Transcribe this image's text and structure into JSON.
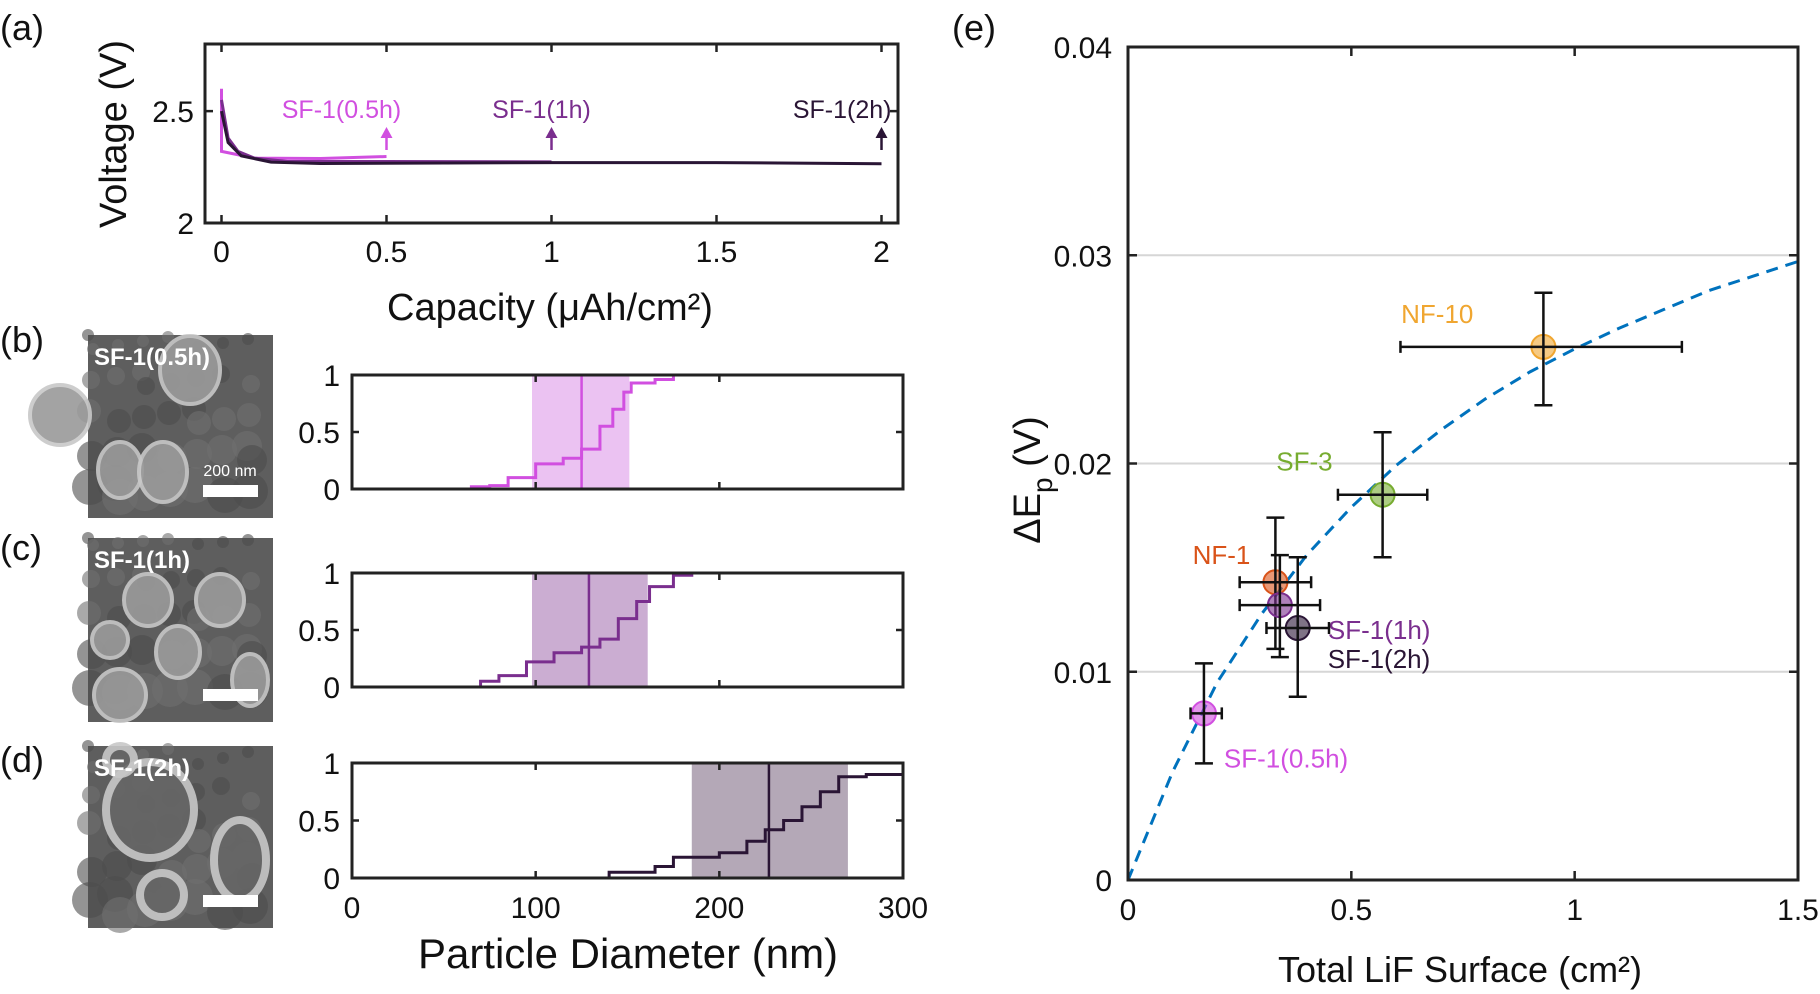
{
  "panel_labels": {
    "a": "(a)",
    "b": "(b)",
    "c": "(c)",
    "d": "(d)",
    "e": "(e)"
  },
  "colors": {
    "sf1_05h": "#d14fe0",
    "sf1_1h": "#7a2e8e",
    "sf1_2h": "#2a1535",
    "nf1": "#d95319",
    "sf3": "#77ac30",
    "nf10": "#f0a630",
    "fit": "#0072bd"
  },
  "sem_images": [
    {
      "label": "SF-1(0.5h)",
      "scale_label": "200 nm"
    },
    {
      "label": "SF-1(1h)",
      "scale_label": ""
    },
    {
      "label": "SF-1(2h)",
      "scale_label": ""
    }
  ],
  "chart_data": [
    {
      "panel": "a",
      "type": "line",
      "xlabel": "Capacity (μAh/cm²)",
      "ylabel": "Voltage (V)",
      "xlim": [
        -0.05,
        2.05
      ],
      "ylim": [
        2,
        2.8
      ],
      "xticks": [
        "0",
        "0.5",
        "1",
        "1.5",
        "2"
      ],
      "xtick_values": [
        0,
        0.5,
        1,
        1.5,
        2
      ],
      "yticks": [
        "2",
        "2.5"
      ],
      "ytick_values": [
        2,
        2.5
      ],
      "grid": false,
      "series": [
        {
          "key": "sf1_05h",
          "points": [
            [
              0,
              2.6
            ],
            [
              0,
              2.32
            ],
            [
              0.1,
              2.29
            ],
            [
              0.3,
              2.288
            ],
            [
              0.5,
              2.297
            ]
          ]
        },
        {
          "key": "sf1_1h",
          "points": [
            [
              0,
              2.55
            ],
            [
              0.02,
              2.38
            ],
            [
              0.05,
              2.32
            ],
            [
              0.1,
              2.29
            ],
            [
              0.2,
              2.275
            ],
            [
              0.5,
              2.275
            ],
            [
              1,
              2.273
            ]
          ]
        },
        {
          "key": "sf1_2h",
          "points": [
            [
              0,
              2.5
            ],
            [
              0.02,
              2.36
            ],
            [
              0.06,
              2.3
            ],
            [
              0.15,
              2.272
            ],
            [
              0.3,
              2.266
            ],
            [
              1,
              2.27
            ],
            [
              1.5,
              2.27
            ],
            [
              2,
              2.265
            ]
          ]
        }
      ],
      "annotations": [
        {
          "text": "SF-1(0.5h)",
          "x": 0.5,
          "key": "sf1_05h"
        },
        {
          "text": "SF-1(1h)",
          "x": 1,
          "key": "sf1_1h"
        },
        {
          "text": "SF-1(2h)",
          "x": 2,
          "key": "sf1_2h"
        }
      ]
    },
    {
      "panel": "b-d",
      "type": "line",
      "xlabel": "Particle Diameter (nm)",
      "xlim": [
        0,
        300
      ],
      "ylim": [
        0,
        1
      ],
      "xticks": [
        "0",
        "100",
        "200",
        "300"
      ],
      "xtick_values": [
        0,
        100,
        200,
        300
      ],
      "yticks": [
        "0",
        "0.5",
        "1"
      ],
      "ytick_values": [
        0,
        0.5,
        1
      ],
      "series": [
        {
          "key": "sf1_05h",
          "shade_color": "#ebc2f2",
          "band": [
            98,
            151
          ],
          "median": 125,
          "cdf": [
            [
              55,
              0
            ],
            [
              65,
              0.02
            ],
            [
              75,
              0.03
            ],
            [
              85,
              0.1
            ],
            [
              100,
              0.22
            ],
            [
              115,
              0.27
            ],
            [
              125,
              0.35
            ],
            [
              135,
              0.55
            ],
            [
              142,
              0.7
            ],
            [
              148,
              0.85
            ],
            [
              152,
              0.93
            ],
            [
              165,
              0.96
            ],
            [
              175,
              1
            ]
          ]
        },
        {
          "key": "sf1_1h",
          "shade_color": "#cbadd2",
          "band": [
            98,
            161
          ],
          "median": 129,
          "cdf": [
            [
              64,
              0
            ],
            [
              70,
              0.05
            ],
            [
              80,
              0.1
            ],
            [
              95,
              0.22
            ],
            [
              110,
              0.3
            ],
            [
              125,
              0.35
            ],
            [
              135,
              0.42
            ],
            [
              145,
              0.6
            ],
            [
              155,
              0.75
            ],
            [
              162,
              0.88
            ],
            [
              175,
              0.98
            ],
            [
              185,
              1
            ]
          ]
        },
        {
          "key": "sf1_2h",
          "shade_color": "#b4a8b7",
          "band": [
            185,
            270
          ],
          "median": 227,
          "cdf": [
            [
              125,
              0
            ],
            [
              140,
              0.05
            ],
            [
              165,
              0.1
            ],
            [
              175,
              0.18
            ],
            [
              200,
              0.22
            ],
            [
              215,
              0.32
            ],
            [
              225,
              0.42
            ],
            [
              235,
              0.5
            ],
            [
              245,
              0.62
            ],
            [
              255,
              0.75
            ],
            [
              265,
              0.88
            ],
            [
              280,
              0.9
            ],
            [
              300,
              0.95
            ]
          ]
        }
      ]
    },
    {
      "panel": "e",
      "type": "scatter",
      "xlabel": "Total LiF Surface (cm²)",
      "ylabel": {
        "main": "ΔE",
        "sub": "p",
        "unit": " (V)"
      },
      "xlim": [
        0,
        1.5
      ],
      "ylim": [
        0,
        0.04
      ],
      "xticks": [
        "0",
        "0.5",
        "1",
        "1.5"
      ],
      "xtick_values": [
        0,
        0.5,
        1,
        1.5
      ],
      "yticks": [
        "0",
        "0.01",
        "0.02",
        "0.03",
        "0.04"
      ],
      "ytick_values": [
        0,
        0.01,
        0.02,
        0.03,
        0.04
      ],
      "grid": "horizontal",
      "points": [
        {
          "label": "NF-10",
          "key": "nf10",
          "x": 0.93,
          "y": 0.0256,
          "xerr": [
            0.61,
            1.24
          ],
          "yerr": [
            0.0228,
            0.0282
          ]
        },
        {
          "label": "SF-3",
          "key": "sf3",
          "x": 0.57,
          "y": 0.0185,
          "xerr": [
            0.47,
            0.67
          ],
          "yerr": [
            0.0155,
            0.0215
          ]
        },
        {
          "label": "NF-1",
          "key": "nf1",
          "x": 0.33,
          "y": 0.0143,
          "xerr": [
            0.25,
            0.41
          ],
          "yerr": [
            0.0111,
            0.0174
          ]
        },
        {
          "label": "SF-1(1h)",
          "key": "sf1_1h",
          "x": 0.34,
          "y": 0.0132,
          "xerr": [
            0.25,
            0.43
          ],
          "yerr": [
            0.0107,
            0.0156
          ]
        },
        {
          "label": "SF-1(2h)",
          "key": "sf1_2h",
          "x": 0.38,
          "y": 0.0121,
          "xerr": [
            0.31,
            0.45
          ],
          "yerr": [
            0.0088,
            0.0155
          ]
        },
        {
          "label": "SF-1(0.5h)",
          "key": "sf1_05h",
          "x": 0.17,
          "y": 0.008,
          "xerr": [
            0.14,
            0.21
          ],
          "yerr": [
            0.0056,
            0.0104
          ]
        }
      ],
      "fit_curve": [
        [
          0,
          0
        ],
        [
          0.1,
          0.0052
        ],
        [
          0.2,
          0.0095
        ],
        [
          0.3,
          0.0128
        ],
        [
          0.4,
          0.0156
        ],
        [
          0.5,
          0.0179
        ],
        [
          0.6,
          0.0199
        ],
        [
          0.7,
          0.0216
        ],
        [
          0.8,
          0.0231
        ],
        [
          0.9,
          0.0244
        ],
        [
          1.0,
          0.0255
        ],
        [
          1.1,
          0.0265
        ],
        [
          1.2,
          0.0274
        ],
        [
          1.3,
          0.0283
        ],
        [
          1.4,
          0.029
        ],
        [
          1.5,
          0.0297
        ]
      ]
    }
  ]
}
